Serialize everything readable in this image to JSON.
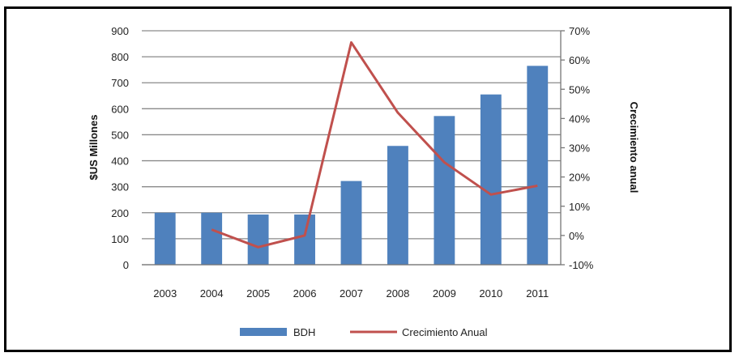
{
  "chart_data": {
    "type": "bar",
    "categories": [
      "2003",
      "2004",
      "2005",
      "2006",
      "2007",
      "2008",
      "2009",
      "2010",
      "2011"
    ],
    "series": [
      {
        "name": "BDH",
        "type": "bar",
        "axis": "left",
        "color": "#4f81bd",
        "values": [
          200,
          200,
          193,
          193,
          322,
          457,
          572,
          655,
          765
        ]
      },
      {
        "name": "Crecimiento Anual",
        "type": "line",
        "axis": "right",
        "color": "#c0504d",
        "values": [
          null,
          0.02,
          -0.04,
          0.0,
          0.66,
          0.42,
          0.25,
          0.14,
          0.17
        ]
      }
    ],
    "ylabel": "$US Millones",
    "y2label": "Crecimiento anual",
    "ylim": [
      0,
      900
    ],
    "yticks": [
      "0",
      "100",
      "200",
      "300",
      "400",
      "500",
      "600",
      "700",
      "800",
      "900"
    ],
    "y2lim": [
      -0.1,
      0.7
    ],
    "y2ticks": [
      "-10%",
      "0%",
      "10%",
      "20%",
      "30%",
      "40%",
      "50%",
      "60%",
      "70%"
    ],
    "grid": true,
    "legend_position": "bottom"
  }
}
